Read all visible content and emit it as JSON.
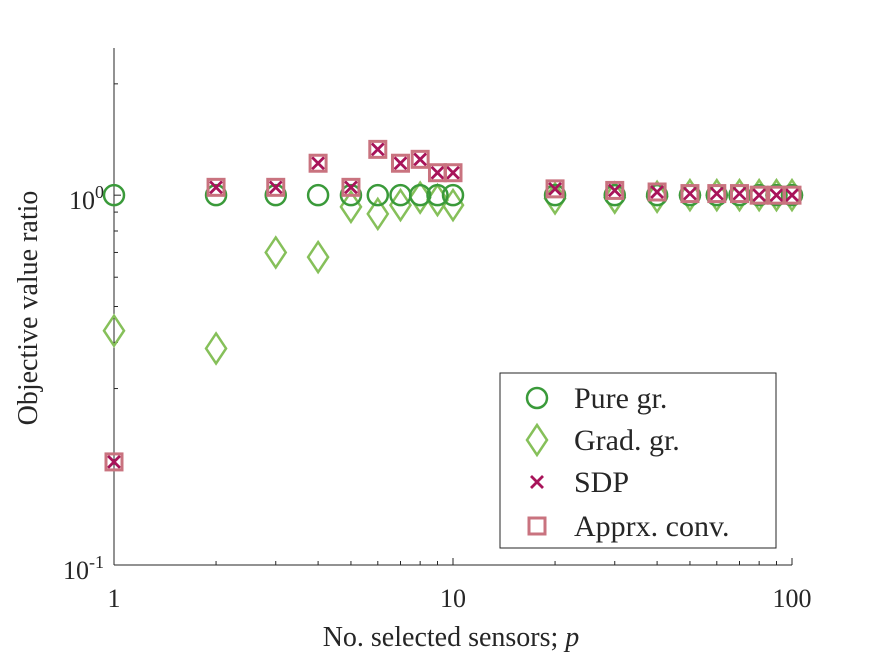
{
  "chart_data": {
    "type": "scatter",
    "xscale": "log",
    "yscale": "log",
    "xlim": [
      1,
      100
    ],
    "ylim": [
      0.1,
      2.5
    ],
    "xticks": [
      {
        "value": 1,
        "label": "1"
      },
      {
        "value": 10,
        "label": "10"
      },
      {
        "value": 100,
        "label": "100"
      }
    ],
    "yticks": [
      {
        "value": 0.1,
        "base": "10",
        "exp": "-1"
      },
      {
        "value": 1,
        "base": "10",
        "exp": "0"
      }
    ],
    "xlabel": {
      "text": "No. selected sensors; ",
      "italic": "p"
    },
    "ylabel": "Objective value ratio",
    "grid": false,
    "legend_position": "bottom-right",
    "series": [
      {
        "name": "Pure gr.",
        "marker": "circle",
        "color": "#3a9a3a",
        "x": [
          1,
          2,
          3,
          4,
          5,
          6,
          7,
          8,
          9,
          10,
          20,
          30,
          40,
          50,
          60,
          70,
          80,
          90,
          100
        ],
        "y": [
          1.0,
          1.0,
          1.0,
          1.0,
          1.0,
          1.0,
          1.0,
          1.0,
          1.0,
          1.0,
          1.0,
          1.0,
          1.0,
          1.0,
          1.0,
          1.0,
          1.0,
          1.0,
          1.0
        ]
      },
      {
        "name": "Grad. gr.",
        "marker": "diamond",
        "color": "#86c05a",
        "x": [
          1,
          2,
          3,
          4,
          5,
          6,
          7,
          8,
          9,
          10,
          20,
          30,
          40,
          50,
          60,
          70,
          80,
          90,
          100
        ],
        "y": [
          0.43,
          0.385,
          0.7,
          0.68,
          0.93,
          0.89,
          0.94,
          0.985,
          0.97,
          0.94,
          0.98,
          0.985,
          0.99,
          1.0,
          1.0,
          1.0,
          1.0,
          1.0,
          1.0
        ]
      },
      {
        "name": "SDP",
        "marker": "x",
        "color": "#a8145a",
        "x": [
          1,
          2,
          3,
          4,
          5,
          6,
          7,
          8,
          9,
          10,
          20,
          30,
          40,
          50,
          60,
          70,
          80,
          90,
          100
        ],
        "y": [
          0.19,
          1.05,
          1.05,
          1.22,
          1.05,
          1.33,
          1.22,
          1.25,
          1.15,
          1.15,
          1.04,
          1.03,
          1.02,
          1.01,
          1.01,
          1.01,
          1.0,
          1.0,
          1.0
        ]
      },
      {
        "name": "Apprx. conv.",
        "marker": "square",
        "color": "#c9737f",
        "x": [
          1,
          2,
          3,
          4,
          5,
          6,
          7,
          8,
          9,
          10,
          20,
          30,
          40,
          50,
          60,
          70,
          80,
          90,
          100
        ],
        "y": [
          0.19,
          1.05,
          1.05,
          1.22,
          1.05,
          1.33,
          1.22,
          1.25,
          1.15,
          1.15,
          1.04,
          1.03,
          1.02,
          1.01,
          1.01,
          1.01,
          1.0,
          1.0,
          1.0
        ]
      }
    ]
  }
}
